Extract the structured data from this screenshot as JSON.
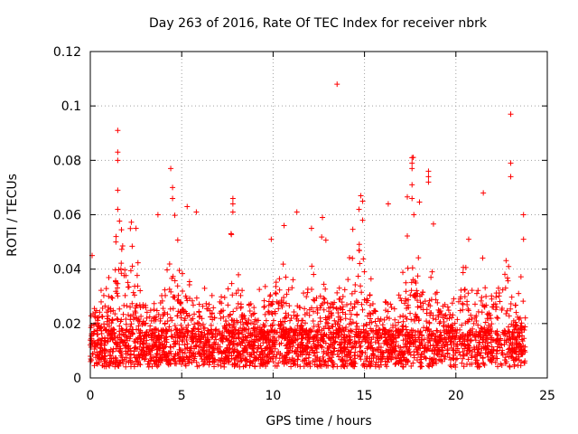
{
  "chart_data": {
    "type": "scatter",
    "title": "Day 263 of 2016, Rate Of TEC Index for receiver nbrk",
    "xlabel": "GPS time / hours",
    "ylabel": "ROTI / TECUs",
    "xlim": [
      0,
      25
    ],
    "ylim": [
      0,
      0.12
    ],
    "xticks": [
      0,
      5,
      10,
      15,
      20,
      25
    ],
    "xtick_labels": [
      "0",
      "5",
      "10",
      "15",
      "20",
      "25"
    ],
    "yticks": [
      0,
      0.02,
      0.04,
      0.06,
      0.08,
      0.1,
      0.12
    ],
    "ytick_labels": [
      "0",
      "0.02",
      "0.04",
      "0.06",
      "0.08",
      "0.1",
      "0.12"
    ],
    "grid": true,
    "marker": "+",
    "color": "#ff0000",
    "data_range_x": [
      0,
      23.8
    ],
    "baseline_band": [
      0.004,
      0.018
    ],
    "series": [
      {
        "name": "ROTI",
        "notable_points": [
          [
            1.5,
            0.091
          ],
          [
            1.5,
            0.083
          ],
          [
            1.5,
            0.08
          ],
          [
            1.5,
            0.069
          ],
          [
            1.5,
            0.062
          ],
          [
            1.4,
            0.05
          ],
          [
            4.4,
            0.077
          ],
          [
            4.5,
            0.07
          ],
          [
            4.5,
            0.066
          ],
          [
            5.3,
            0.063
          ],
          [
            5.8,
            0.061
          ],
          [
            7.8,
            0.066
          ],
          [
            7.8,
            0.064
          ],
          [
            7.8,
            0.061
          ],
          [
            10.6,
            0.056
          ],
          [
            11.3,
            0.061
          ],
          [
            12.7,
            0.059
          ],
          [
            13.5,
            0.108
          ],
          [
            14.8,
            0.067
          ],
          [
            14.9,
            0.065
          ],
          [
            14.7,
            0.062
          ],
          [
            14.9,
            0.058
          ],
          [
            16.3,
            0.064
          ],
          [
            17.6,
            0.081
          ],
          [
            17.6,
            0.079
          ],
          [
            17.6,
            0.077
          ],
          [
            17.6,
            0.071
          ],
          [
            17.6,
            0.066
          ],
          [
            17.7,
            0.06
          ],
          [
            18.5,
            0.076
          ],
          [
            18.5,
            0.074
          ],
          [
            18.5,
            0.072
          ],
          [
            21.5,
            0.068
          ],
          [
            23.0,
            0.097
          ],
          [
            23.0,
            0.079
          ],
          [
            23.0,
            0.074
          ],
          [
            23.7,
            0.06
          ],
          [
            23.7,
            0.051
          ],
          [
            0.1,
            0.045
          ],
          [
            2.5,
            0.055
          ],
          [
            3.7,
            0.06
          ],
          [
            7.7,
            0.053
          ],
          [
            9.9,
            0.051
          ],
          [
            12.1,
            0.055
          ],
          [
            20.7,
            0.051
          ]
        ]
      }
    ]
  }
}
